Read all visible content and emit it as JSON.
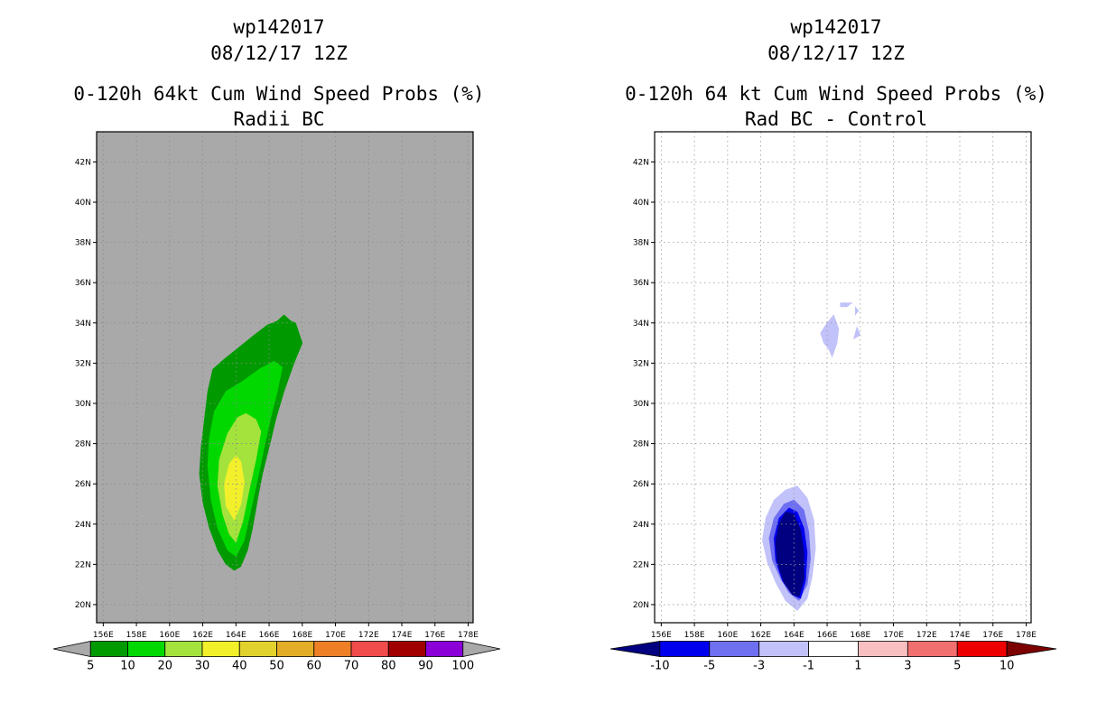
{
  "chart_data": [
    {
      "type": "contour-map",
      "title_lines": [
        "wp142017",
        "08/12/17 12Z",
        "0-120h 64kt Cum Wind Speed Probs (%)",
        "Radii BC"
      ],
      "x_ticks": [
        "156E",
        "158E",
        "160E",
        "162E",
        "164E",
        "166E",
        "168E",
        "170E",
        "172E",
        "174E",
        "176E",
        "178E"
      ],
      "y_ticks": [
        "20N",
        "22N",
        "24N",
        "26N",
        "28N",
        "30N",
        "32N",
        "34N",
        "36N",
        "38N",
        "40N",
        "42N"
      ],
      "xlim": [
        155.6,
        178.3
      ],
      "ylim": [
        19.1,
        43.5
      ],
      "grid": true,
      "background": "#a9a9a9",
      "colorbar": {
        "labels": [
          "5",
          "10",
          "20",
          "30",
          "40",
          "50",
          "60",
          "70",
          "80",
          "90",
          "100"
        ],
        "colors": [
          "#009a00",
          "#00d800",
          "#a3e33c",
          "#f2f02a",
          "#e2d22e",
          "#e4ad28",
          "#ee7f27",
          "#f24b4b",
          "#a10000",
          "#8c00d8"
        ],
        "extend_colors": [
          "#a9a9a9",
          "#a9a9a9"
        ]
      },
      "contours": [
        {
          "level": "5",
          "color": "#009a00",
          "points": [
            [
              163.9,
              21.7
            ],
            [
              164.3,
              21.9
            ],
            [
              164.7,
              22.7
            ],
            [
              165.0,
              23.8
            ],
            [
              165.3,
              25.2
            ],
            [
              165.6,
              26.5
            ],
            [
              166.0,
              27.8
            ],
            [
              166.4,
              29.2
            ],
            [
              166.9,
              30.6
            ],
            [
              167.5,
              32.0
            ],
            [
              168.0,
              33.0
            ],
            [
              167.6,
              34.0
            ],
            [
              167.3,
              34.1
            ],
            [
              166.9,
              34.4
            ],
            [
              166.5,
              34.1
            ],
            [
              165.9,
              33.9
            ],
            [
              165.1,
              33.4
            ],
            [
              164.2,
              32.8
            ],
            [
              163.3,
              32.2
            ],
            [
              162.6,
              31.7
            ],
            [
              162.3,
              30.6
            ],
            [
              162.1,
              29.2
            ],
            [
              161.9,
              27.8
            ],
            [
              161.8,
              26.5
            ],
            [
              162.0,
              25.1
            ],
            [
              162.4,
              23.8
            ],
            [
              162.9,
              22.7
            ],
            [
              163.4,
              22.0
            ]
          ]
        },
        {
          "level": "10",
          "color": "#00d800",
          "points": [
            [
              164.0,
              22.4
            ],
            [
              164.5,
              23.2
            ],
            [
              164.9,
              24.7
            ],
            [
              165.3,
              26.2
            ],
            [
              165.7,
              27.8
            ],
            [
              166.1,
              29.3
            ],
            [
              166.5,
              30.6
            ],
            [
              166.8,
              31.8
            ],
            [
              166.3,
              32.1
            ],
            [
              165.4,
              31.7
            ],
            [
              164.4,
              31.1
            ],
            [
              163.4,
              30.6
            ],
            [
              162.7,
              29.6
            ],
            [
              162.4,
              28.3
            ],
            [
              162.3,
              26.9
            ],
            [
              162.5,
              25.2
            ],
            [
              162.9,
              23.8
            ],
            [
              163.5,
              22.7
            ]
          ]
        },
        {
          "level": "20",
          "color": "#a3e33c",
          "points": [
            [
              164.0,
              23.1
            ],
            [
              164.4,
              24.1
            ],
            [
              164.8,
              25.7
            ],
            [
              165.2,
              27.2
            ],
            [
              165.5,
              28.6
            ],
            [
              165.2,
              29.2
            ],
            [
              164.6,
              29.5
            ],
            [
              164.1,
              29.3
            ],
            [
              163.5,
              28.5
            ],
            [
              163.0,
              27.2
            ],
            [
              162.9,
              25.9
            ],
            [
              163.2,
              24.5
            ],
            [
              163.6,
              23.5
            ]
          ]
        },
        {
          "level": "30",
          "color": "#f2f02a",
          "points": [
            [
              163.9,
              24.2
            ],
            [
              164.3,
              25.0
            ],
            [
              164.5,
              26.1
            ],
            [
              164.3,
              27.1
            ],
            [
              164.0,
              27.4
            ],
            [
              163.6,
              27.0
            ],
            [
              163.3,
              26.0
            ],
            [
              163.4,
              24.9
            ]
          ]
        }
      ]
    },
    {
      "type": "contour-map",
      "title_lines": [
        "wp142017",
        "08/12/17 12Z",
        "0-120h 64 kt Cum Wind Speed Probs (%)",
        "Rad BC - Control"
      ],
      "x_ticks": [
        "156E",
        "158E",
        "160E",
        "162E",
        "164E",
        "166E",
        "168E",
        "170E",
        "172E",
        "174E",
        "176E",
        "178E"
      ],
      "y_ticks": [
        "20N",
        "22N",
        "24N",
        "26N",
        "28N",
        "30N",
        "32N",
        "34N",
        "36N",
        "38N",
        "40N",
        "42N"
      ],
      "xlim": [
        155.6,
        178.3
      ],
      "ylim": [
        19.1,
        43.5
      ],
      "grid": true,
      "background": "#ffffff",
      "colorbar": {
        "labels": [
          "-10",
          "-5",
          "-3",
          "-1",
          "1",
          "3",
          "5",
          "10"
        ],
        "colors": [
          "#0000ee",
          "#6f6ff2",
          "#c2c2fa",
          "#ffffff",
          "#f8c0c0",
          "#f26f6f",
          "#ee0000"
        ],
        "extend_colors": [
          "#000080",
          "#7d0000"
        ]
      },
      "contours": [
        {
          "level": "-1",
          "color": "#c2c2fa",
          "points": [
            [
              164.2,
              19.7
            ],
            [
              164.8,
              20.3
            ],
            [
              165.1,
              21.4
            ],
            [
              165.3,
              22.8
            ],
            [
              165.2,
              24.2
            ],
            [
              164.8,
              25.3
            ],
            [
              164.2,
              25.9
            ],
            [
              163.5,
              25.7
            ],
            [
              162.8,
              25.2
            ],
            [
              162.3,
              24.3
            ],
            [
              162.1,
              23.2
            ],
            [
              162.4,
              22.1
            ],
            [
              162.9,
              21.1
            ],
            [
              163.5,
              20.2
            ]
          ]
        },
        {
          "level": "-1",
          "color": "#c2c2fa",
          "points": [
            [
              166.3,
              32.3
            ],
            [
              166.6,
              33.0
            ],
            [
              166.7,
              33.7
            ],
            [
              166.4,
              34.4
            ],
            [
              166.0,
              34.0
            ],
            [
              165.6,
              33.5
            ],
            [
              165.8,
              33.0
            ],
            [
              166.1,
              32.7
            ]
          ]
        },
        {
          "level": "-1",
          "color": "#c2c2fa",
          "points": [
            [
              166.8,
              35.0
            ],
            [
              167.5,
              35.0
            ],
            [
              167.2,
              34.8
            ],
            [
              166.8,
              34.8
            ]
          ]
        },
        {
          "level": "-1",
          "color": "#c2c2fa",
          "points": [
            [
              167.7,
              34.8
            ],
            [
              167.9,
              34.6
            ],
            [
              167.7,
              34.4
            ]
          ]
        },
        {
          "level": "-1",
          "color": "#c2c2fa",
          "points": [
            [
              167.8,
              33.8
            ],
            [
              168.0,
              33.4
            ],
            [
              167.6,
              33.2
            ]
          ]
        },
        {
          "level": "-3",
          "color": "#6f6ff2",
          "points": [
            [
              164.3,
              20.2
            ],
            [
              164.8,
              21.0
            ],
            [
              165.0,
              22.3
            ],
            [
              164.9,
              23.6
            ],
            [
              164.6,
              24.7
            ],
            [
              164.0,
              25.2
            ],
            [
              163.4,
              25.0
            ],
            [
              162.8,
              24.3
            ],
            [
              162.5,
              23.3
            ],
            [
              162.7,
              22.2
            ],
            [
              163.2,
              21.3
            ],
            [
              163.7,
              20.6
            ]
          ]
        },
        {
          "level": "-5",
          "color": "#0000ee",
          "points": [
            [
              164.4,
              20.3
            ],
            [
              164.7,
              21.2
            ],
            [
              164.8,
              22.6
            ],
            [
              164.6,
              23.8
            ],
            [
              164.2,
              24.6
            ],
            [
              163.7,
              24.8
            ],
            [
              163.1,
              24.3
            ],
            [
              162.8,
              23.3
            ],
            [
              162.9,
              22.2
            ],
            [
              163.3,
              21.2
            ],
            [
              163.9,
              20.5
            ]
          ]
        },
        {
          "level": "-10",
          "color": "#000080",
          "points": [
            [
              164.3,
              20.4
            ],
            [
              164.6,
              21.3
            ],
            [
              164.6,
              22.6
            ],
            [
              164.4,
              23.7
            ],
            [
              164.0,
              24.5
            ],
            [
              163.5,
              24.6
            ],
            [
              163.1,
              24.0
            ],
            [
              162.9,
              23.1
            ],
            [
              163.0,
              22.1
            ],
            [
              163.4,
              21.1
            ],
            [
              163.9,
              20.5
            ]
          ]
        }
      ]
    }
  ]
}
